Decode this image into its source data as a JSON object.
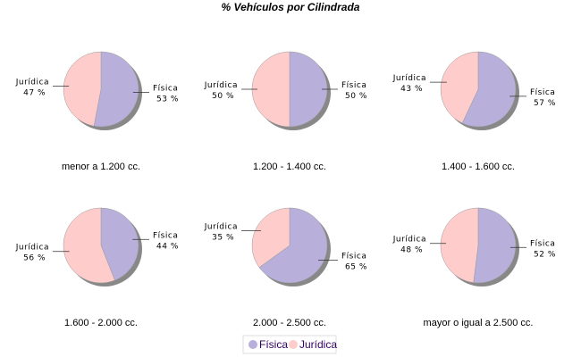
{
  "chart_data": {
    "type": "pie",
    "title": "% Vehículos por Cilindrada",
    "series_names": [
      "Física",
      "Jurídica"
    ],
    "colors": {
      "Física": "#b8afdb",
      "Jurídica": "#ffcccc"
    },
    "legend": {
      "placement": "bottom",
      "entries": [
        "Física",
        "Jurídica"
      ]
    },
    "pies": [
      {
        "category": "menor a 1.200 cc.",
        "values": {
          "Física": 53,
          "Jurídica": 47
        }
      },
      {
        "category": "1.200 - 1.400 cc.",
        "values": {
          "Física": 50,
          "Jurídica": 50
        }
      },
      {
        "category": "1.400 - 1.600 cc.",
        "values": {
          "Física": 57,
          "Jurídica": 43
        }
      },
      {
        "category": "1.600 - 2.000 cc.",
        "values": {
          "Física": 44,
          "Jurídica": 56
        }
      },
      {
        "category": "2.000 - 2.500 cc.",
        "values": {
          "Física": 65,
          "Jurídica": 35
        }
      },
      {
        "category": "mayor o igual a 2.500 cc.",
        "values": {
          "Física": 52,
          "Jurídica": 48
        }
      }
    ]
  }
}
